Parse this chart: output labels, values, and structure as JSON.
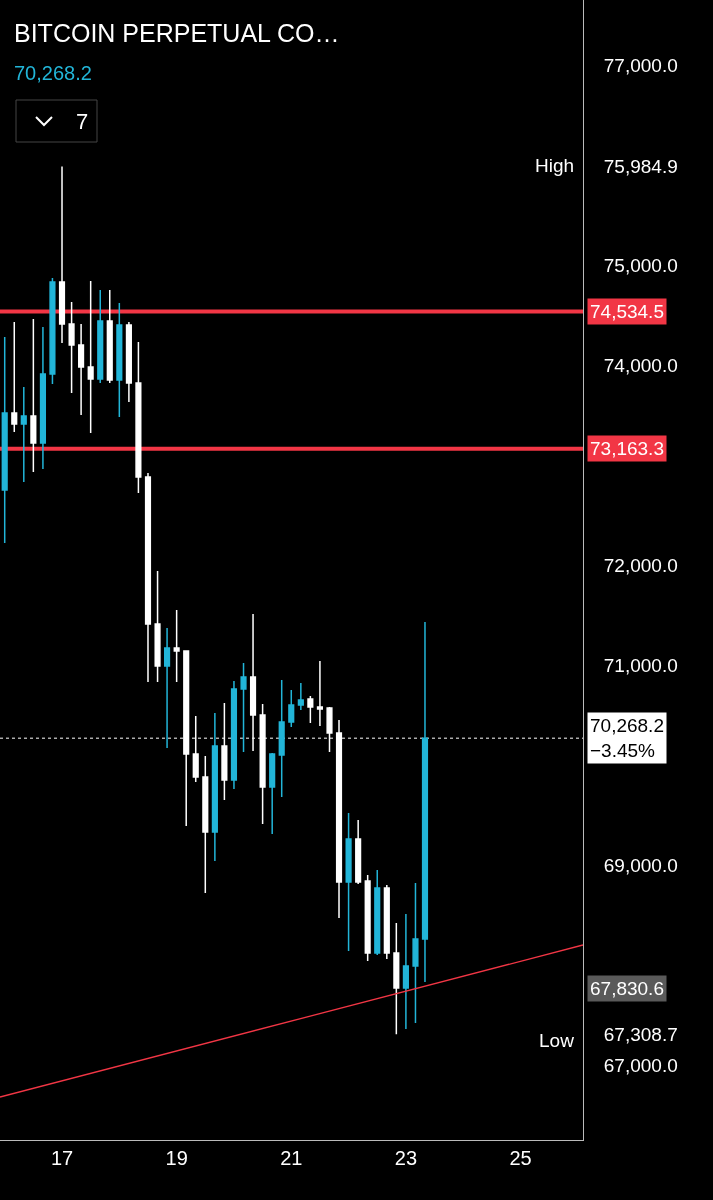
{
  "chart_data": {
    "type": "candlestick",
    "title": "BITCOIN PERPETUAL CO…",
    "subtitle": "70,268.2",
    "x": [
      16.0,
      16.167,
      16.333,
      16.5,
      16.667,
      16.833,
      17.0,
      17.167,
      17.333,
      17.5,
      17.667,
      17.833,
      18.0,
      18.167,
      18.333,
      18.5,
      18.667,
      18.833,
      19.0,
      19.167,
      19.333,
      19.5,
      19.667,
      19.833,
      20.0,
      20.167,
      20.333,
      20.5,
      20.667,
      20.833,
      21.0,
      21.167,
      21.333,
      21.5,
      21.667,
      21.833,
      22.0,
      22.167,
      22.333,
      22.5,
      22.667,
      22.833,
      23.0,
      23.167,
      23.333
    ],
    "ohlc": [
      [
        72750,
        74280,
        72220,
        73520
      ],
      [
        73520,
        74430,
        73330,
        73410
      ],
      [
        73410,
        73780,
        72830,
        73490
      ],
      [
        73490,
        74460,
        72930,
        73220
      ],
      [
        73220,
        74380,
        72960,
        73910
      ],
      [
        73910,
        74870,
        73810,
        74830
      ],
      [
        74830,
        75984.9,
        74220,
        74410
      ],
      [
        74410,
        74630,
        73720,
        74200
      ],
      [
        74200,
        74410,
        73500,
        73980
      ],
      [
        73980,
        74840,
        73320,
        73860
      ],
      [
        73860,
        74750,
        73820,
        74440
      ],
      [
        74440,
        74750,
        73820,
        73850
      ],
      [
        73850,
        74620,
        73480,
        74400
      ],
      [
        74400,
        74430,
        73630,
        73820
      ],
      [
        73820,
        74230,
        72720,
        72880
      ],
      [
        72880,
        72920,
        70830,
        71410
      ],
      [
        71410,
        71940,
        70830,
        70990
      ],
      [
        70990,
        71370,
        70170,
        71170
      ],
      [
        71170,
        71550,
        70830,
        71140
      ],
      [
        71140,
        71140,
        69390,
        70110
      ],
      [
        70110,
        70490,
        69830,
        69880
      ],
      [
        69880,
        70090,
        68720,
        69330
      ],
      [
        69330,
        70520,
        69040,
        70190
      ],
      [
        70190,
        70620,
        69650,
        69850
      ],
      [
        69850,
        70840,
        69760,
        70760
      ],
      [
        70760,
        71020,
        70130,
        70880
      ],
      [
        70880,
        71510,
        70140,
        70500
      ],
      [
        70500,
        70610,
        69410,
        69780
      ],
      [
        69780,
        70120,
        69310,
        70110
      ],
      [
        70100,
        70850,
        69680,
        70430
      ],
      [
        70430,
        70750,
        70380,
        70600
      ],
      [
        70600,
        70820,
        70550,
        70650
      ],
      [
        70660,
        70690,
        70420,
        70580
      ],
      [
        70580,
        71040,
        70390,
        70560
      ],
      [
        70570,
        70580,
        70130,
        70320
      ],
      [
        70320,
        70450,
        68470,
        68830
      ],
      [
        68830,
        69520,
        68140,
        69260
      ],
      [
        69260,
        69450,
        68810,
        68830
      ],
      [
        68840,
        68900,
        68040,
        68120
      ],
      [
        68120,
        68950,
        68100,
        68770
      ],
      [
        68770,
        68800,
        68060,
        68120
      ],
      [
        68120,
        68420,
        67308.7,
        67770
      ],
      [
        67770,
        68510,
        67360,
        67990
      ],
      [
        67990,
        68820,
        67420,
        68260
      ],
      [
        68260,
        71430,
        67830,
        70268.2
      ]
    ],
    "colors": [
      "#22b5d8",
      "#ffffff",
      "#22b5d8",
      "#ffffff",
      "#22b5d8",
      "#22b5d8",
      "#ffffff",
      "#ffffff",
      "#ffffff",
      "#ffffff",
      "#22b5d8",
      "#ffffff",
      "#22b5d8",
      "#ffffff",
      "#ffffff",
      "#ffffff",
      "#ffffff",
      "#22b5d8",
      "#ffffff",
      "#ffffff",
      "#ffffff",
      "#ffffff",
      "#22b5d8",
      "#ffffff",
      "#22b5d8",
      "#22b5d8",
      "#ffffff",
      "#ffffff",
      "#22b5d8",
      "#22b5d8",
      "#22b5d8",
      "#22b5d8",
      "#ffffff",
      "#ffffff",
      "#ffffff",
      "#ffffff",
      "#22b5d8",
      "#ffffff",
      "#ffffff",
      "#22b5d8",
      "#ffffff",
      "#ffffff",
      "#22b5d8",
      "#22b5d8",
      "#22b5d8"
    ],
    "series": [
      {
        "type": "line",
        "color": "#f23645",
        "x": [
          15.918,
          26.09
        ],
        "values": [
          66680,
          68200
        ]
      }
    ],
    "xlim": [
      15.918,
      26.09
    ],
    "xticks": [
      17,
      19,
      21,
      23,
      25
    ],
    "ylim": [
      66250,
      77650
    ],
    "yticks": [
      {
        "value": 67000,
        "label": "67,000.0"
      },
      {
        "value": 67308.7,
        "label": "67,308.7"
      },
      {
        "value": 69000,
        "label": "69,000.0"
      },
      {
        "value": 71000,
        "label": "71,000.0"
      },
      {
        "value": 72000,
        "label": "72,000.0"
      },
      {
        "value": 74000,
        "label": "74,000.0"
      },
      {
        "value": 75000,
        "label": "75,000.0"
      },
      {
        "value": 75984.9,
        "label": "75,984.9"
      },
      {
        "value": 77000,
        "label": "77,000.0"
      }
    ],
    "ref_lines": [
      {
        "axis": "y",
        "value": 74534.5,
        "label": "74,534.5",
        "color": "#f23645",
        "line_style": "solid"
      },
      {
        "axis": "y",
        "value": 73163.3,
        "label": "73,163.3",
        "color": "#f23645",
        "line_style": "solid"
      },
      {
        "axis": "y",
        "value": 70268.2,
        "label": "70,268.2\n−3.45%",
        "color": "#ffffff",
        "line_style": "dotted"
      }
    ],
    "annotations": [
      "7",
      "High",
      "Low",
      "67,830.6"
    ],
    "grid": false
  }
}
